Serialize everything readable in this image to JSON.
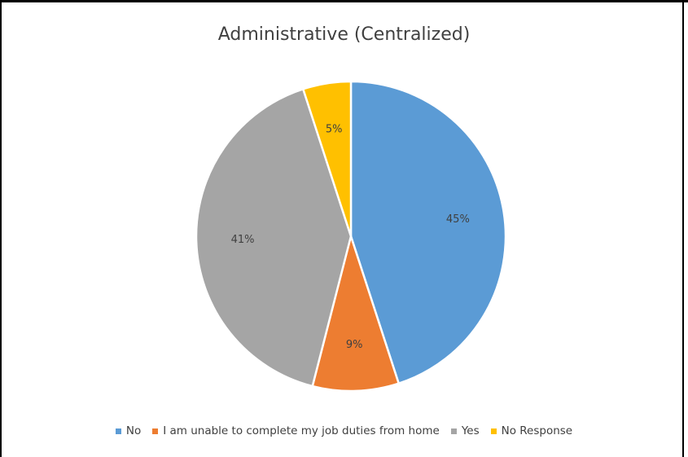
{
  "chart_data": {
    "type": "pie",
    "title": "Administrative (Centralized)",
    "slices": [
      {
        "name": "No",
        "value": 45,
        "label": "45%",
        "color": "#5b9bd5"
      },
      {
        "name": "I am unable to complete my job duties from home",
        "value": 9,
        "label": "9%",
        "color": "#ed7d31"
      },
      {
        "name": "Yes",
        "value": 41,
        "label": "41%",
        "color": "#a5a5a5"
      },
      {
        "name": "No Response",
        "value": 5,
        "label": "5%",
        "color": "#ffc000"
      }
    ],
    "legend_position": "bottom"
  }
}
